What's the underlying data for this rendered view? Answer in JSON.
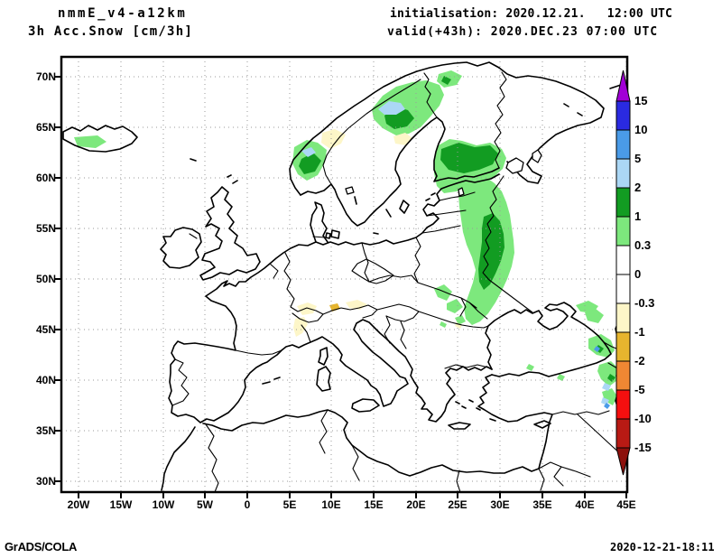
{
  "header": {
    "title_line1": "nmmE_v4-a12km",
    "title_line2": "3h Acc.Snow [cm/3h]",
    "init_label": "initialisation: 2020.12.21.   12:00 UTC",
    "valid_label": "valid(+43h): 2020.DEC.23 07:00 UTC"
  },
  "footer": {
    "generator": "GrADS/COLA",
    "created": "2020-12-21-18:11"
  },
  "axes": {
    "lat_labels": [
      "70N",
      "65N",
      "60N",
      "55N",
      "50N",
      "45N",
      "40N",
      "35N",
      "30N"
    ],
    "lon_labels": [
      "20W",
      "15W",
      "10W",
      "5W",
      "0",
      "5E",
      "10E",
      "15E",
      "20E",
      "25E",
      "30E",
      "35E",
      "40E",
      "45E"
    ]
  },
  "colorbar": {
    "tick_labels": [
      "15",
      "10",
      "5",
      "2",
      "1",
      "0.3",
      "0",
      "-0.3",
      "-1",
      "-2",
      "-5",
      "-10",
      "-15"
    ],
    "segment_colors_top_to_bottom": [
      "#a100d6",
      "#2a2ae1",
      "#4a9be8",
      "#abd7f5",
      "#129c22",
      "#7de87d",
      "#ffffff",
      "#ffffff",
      "#fdf6c8",
      "#e6b52e",
      "#ef8733",
      "#f50f0f",
      "#b81a14",
      "#8c100c"
    ]
  },
  "palette": {
    "light_green": "#7de87d",
    "dark_green": "#129c22",
    "light_blue": "#abd7f5",
    "mid_blue": "#4a9be8",
    "cream": "#fdf6c8",
    "gold": "#e6b52e",
    "orange": "#ef8733",
    "red": "#f50f0f",
    "dark_red": "#b81a14",
    "maroon": "#8c100c",
    "violet": "#a100d6",
    "blue": "#2a2ae1"
  },
  "chart_data": {
    "type": "heatmap",
    "title": "3h Acc.Snow [cm/3h]",
    "model": "nmmE_v4-a12km",
    "units": "cm/3h",
    "scale_levels": [
      -15,
      -10,
      -5,
      -2,
      -1,
      -0.3,
      0,
      0.3,
      1,
      2,
      5,
      10,
      15
    ],
    "map_region": {
      "lon_range": [
        "20W",
        "45E"
      ],
      "lat_range": [
        "30N",
        "70N"
      ],
      "grid_interval_deg": 5
    },
    "depicted_snow_areas": [
      {
        "area": "southern Iceland coast",
        "value_cm": "0.3-1"
      },
      {
        "area": "central Norway coast (Trondelag)",
        "value_cm": "0.3-5, small 2-5 core"
      },
      {
        "area": "northern Scandinavia (Norway/Sweden border)",
        "value_cm": "0.3-5, 2-5 core"
      },
      {
        "area": "Finnish Lakeland / Karelia",
        "value_cm": "0.3-2, wide 1-2 core"
      },
      {
        "area": "western Russia band from Lake Ladoga to Ukraine",
        "value_cm": "0.3-2, 1-2 core"
      },
      {
        "area": "Carpathians (Romania)",
        "value_cm": "0.3-1 streaks"
      },
      {
        "area": "Caucasus / eastern Black Sea",
        "value_cm": "0.3-5 patches with 2-5 spots"
      },
      {
        "area": "Alps",
        "value_cm": "-0.3 to -2 (negative patches)"
      },
      {
        "area": "Norway coast near Trondheim / Gulf of Bothnia coast",
        "value_cm": "-0.3 to -1 (negative patches)"
      }
    ]
  }
}
